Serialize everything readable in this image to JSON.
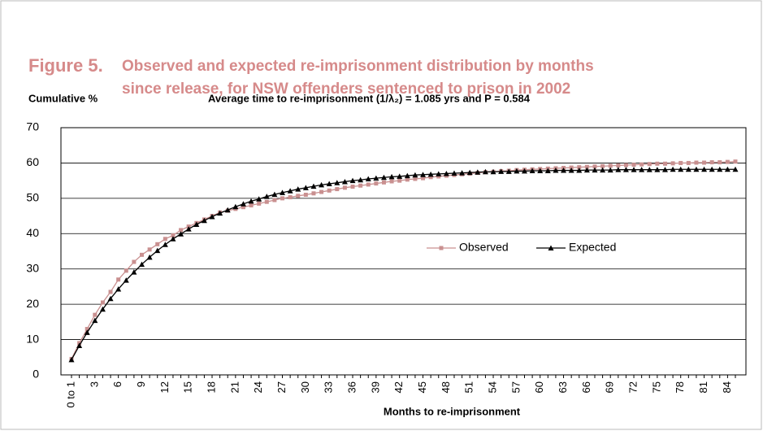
{
  "chart_data": {
    "type": "line",
    "figure_label": "Figure 5.",
    "title": [
      "Observed and expected re-imprisonment distribution by months",
      "since release, for NSW offenders sentenced to prison in 2002"
    ],
    "ylabel": "Cumulative %",
    "annotation": "Average time to re-imprisonment (1/λ₂) =  1.085 yrs and P = 0.584",
    "xlabel": "Months to re-imprisonment",
    "categories": [
      "0 to 1",
      null,
      null,
      "3",
      null,
      null,
      "6",
      null,
      null,
      "9",
      null,
      null,
      "12",
      null,
      null,
      "15",
      null,
      null,
      "18",
      null,
      null,
      "21",
      null,
      null,
      "24",
      null,
      null,
      "27",
      null,
      null,
      "30",
      null,
      null,
      "33",
      null,
      null,
      "36",
      null,
      null,
      "39",
      null,
      null,
      "42",
      null,
      null,
      "45",
      null,
      null,
      "48",
      null,
      null,
      "51",
      null,
      null,
      "54",
      null,
      null,
      "57",
      null,
      null,
      "60",
      null,
      null,
      "63",
      null,
      null,
      "66",
      null,
      null,
      "69",
      null,
      null,
      "72",
      null,
      null,
      "75",
      null,
      null,
      "78",
      null,
      null,
      "81",
      null,
      null,
      "84",
      null
    ],
    "series": [
      {
        "name": "Observed",
        "color": "#c99090",
        "marker": "square",
        "values": [
          4.5,
          9,
          13,
          17,
          20.5,
          23.5,
          27,
          29.5,
          32,
          34,
          35.5,
          37,
          38.5,
          39.5,
          41,
          42,
          43,
          44,
          45,
          46,
          46.5,
          47,
          47.5,
          48,
          48.5,
          49,
          49.5,
          50,
          50.3,
          50.7,
          51,
          51.4,
          51.8,
          52.2,
          52.6,
          53,
          53.3,
          53.6,
          53.9,
          54.2,
          54.5,
          54.8,
          55,
          55.3,
          55.5,
          55.7,
          56,
          56.2,
          56.4,
          56.6,
          56.8,
          57,
          57.2,
          57.4,
          57.5,
          57.7,
          57.8,
          58,
          58.1,
          58.2,
          58.3,
          58.4,
          58.5,
          58.6,
          58.7,
          58.8,
          58.9,
          59,
          59.1,
          59.2,
          59.3,
          59.4,
          59.5,
          59.6,
          59.7,
          59.8,
          59.8,
          59.9,
          60,
          60,
          60.1,
          60.1,
          60.2,
          60.2,
          60.3,
          60.4
        ]
      },
      {
        "name": "Expected",
        "color": "#000000",
        "marker": "triangle",
        "values": [
          4.3,
          8.3,
          12,
          15.4,
          18.6,
          21.6,
          24.3,
          26.8,
          29.1,
          31.3,
          33.3,
          35.2,
          36.9,
          38.5,
          39.9,
          41.3,
          42.6,
          43.7,
          44.8,
          45.8,
          46.7,
          47.6,
          48.4,
          49.2,
          49.8,
          50.5,
          51.1,
          51.6,
          52.1,
          52.6,
          53,
          53.4,
          53.8,
          54.1,
          54.4,
          54.7,
          55,
          55.2,
          55.5,
          55.7,
          55.9,
          56.1,
          56.2,
          56.4,
          56.6,
          56.7,
          56.8,
          56.9,
          57,
          57.1,
          57.2,
          57.3,
          57.4,
          57.5,
          57.5,
          57.6,
          57.6,
          57.7,
          57.7,
          57.8,
          57.8,
          57.8,
          57.9,
          57.9,
          57.9,
          57.9,
          58,
          58,
          58,
          58,
          58.1,
          58.1,
          58.1,
          58.1,
          58.1,
          58.1,
          58.1,
          58.2,
          58.2,
          58.2,
          58.2,
          58.2,
          58.2,
          58.2,
          58.2,
          58.2
        ]
      }
    ],
    "ylim": [
      0,
      70
    ],
    "yticks": [
      0,
      10,
      20,
      30,
      40,
      50,
      60,
      70
    ],
    "grid": true,
    "legend": "center"
  }
}
